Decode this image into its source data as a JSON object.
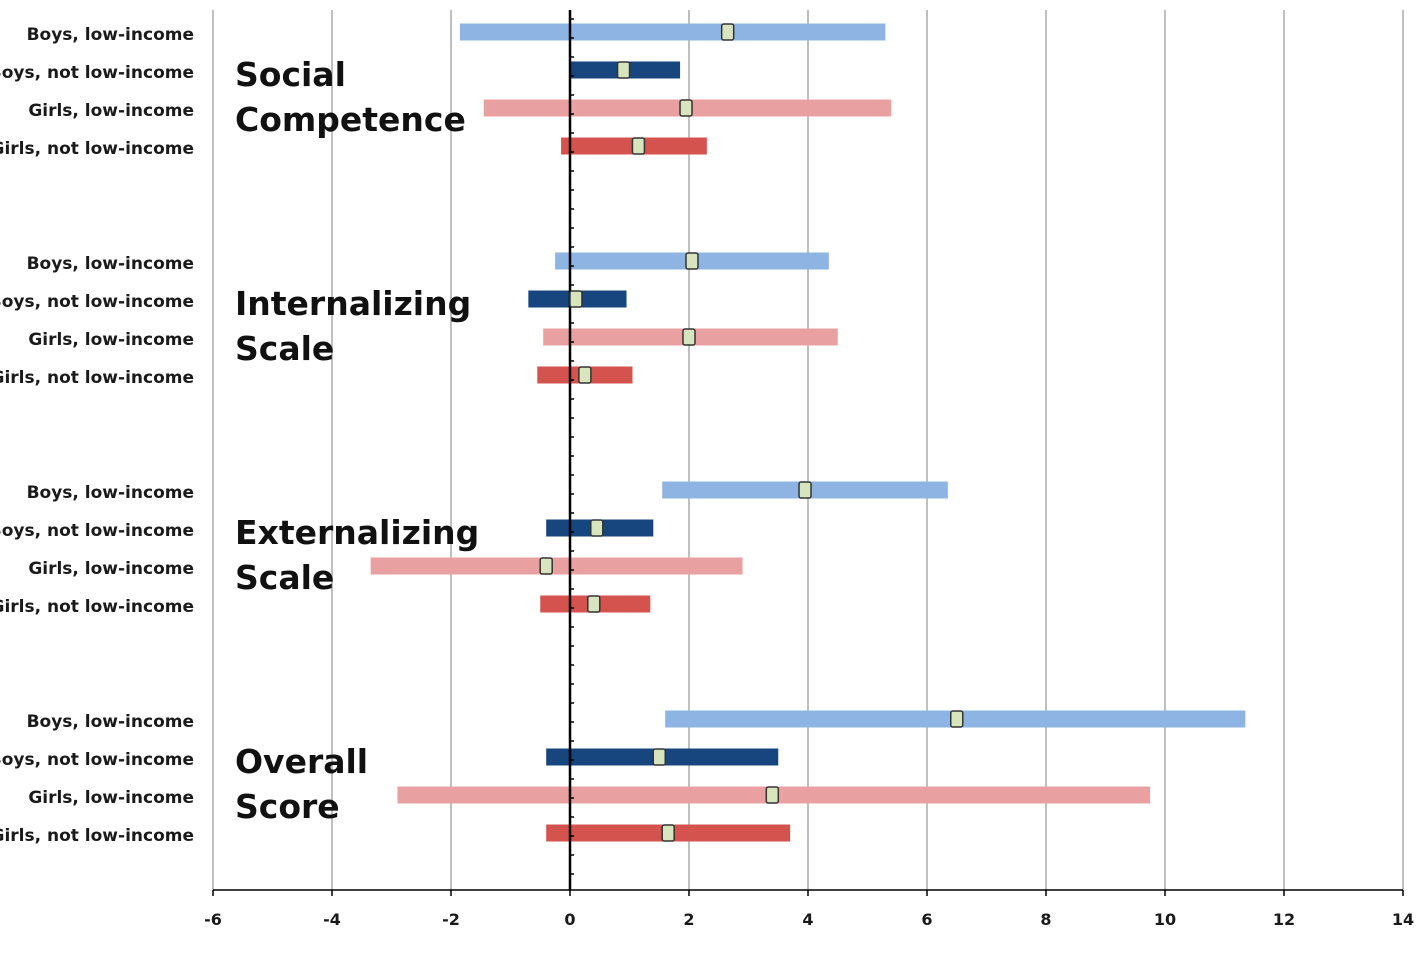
{
  "chart_data": {
    "type": "bar",
    "subtype": "horizontal-range-with-point",
    "title": "",
    "xlabel": "",
    "ylabel": "",
    "xlim": [
      -6,
      14
    ],
    "xticks": [
      -6,
      -4,
      -2,
      0,
      2,
      4,
      6,
      8,
      10,
      12,
      14
    ],
    "grid": true,
    "legend": "none",
    "colors": {
      "Boys, low-income": "#8db4e2",
      "Boys, not low-income": "#17467f",
      "Girls, low-income": "#e8a0a0",
      "Girls, not low-income": "#d4534f",
      "point_fill": "#d7e4bd",
      "point_stroke": "#333333",
      "gridline": "#bfbfbf",
      "axis": "#000000"
    },
    "groups": [
      {
        "title_lines": [
          "Social",
          "Competence"
        ],
        "rows": [
          {
            "label": "Boys, low-income",
            "low": -1.85,
            "high": 5.3,
            "point": 2.65
          },
          {
            "label": "Boys, not low-income",
            "low": 0.0,
            "high": 1.85,
            "point": 0.9
          },
          {
            "label": "Girls, low-income",
            "low": -1.45,
            "high": 5.4,
            "point": 1.95
          },
          {
            "label": "Girls, not low-income",
            "low": -0.15,
            "high": 2.3,
            "point": 1.15
          }
        ]
      },
      {
        "title_lines": [
          "Internalizing",
          "Scale"
        ],
        "rows": [
          {
            "label": "Boys, low-income",
            "low": -0.25,
            "high": 4.35,
            "point": 2.05
          },
          {
            "label": "Boys, not low-income",
            "low": -0.7,
            "high": 0.95,
            "point": 0.1
          },
          {
            "label": "Girls, low-income",
            "low": -0.45,
            "high": 4.5,
            "point": 2.0
          },
          {
            "label": "Girls, not low-income",
            "low": -0.55,
            "high": 1.05,
            "point": 0.25
          }
        ]
      },
      {
        "title_lines": [
          "Externalizing",
          "Scale"
        ],
        "rows": [
          {
            "label": "Boys, low-income",
            "low": 1.55,
            "high": 6.35,
            "point": 3.95
          },
          {
            "label": "Boys, not low-income",
            "low": -0.4,
            "high": 1.4,
            "point": 0.45
          },
          {
            "label": "Girls, low-income",
            "low": -3.35,
            "high": 2.9,
            "point": -0.4
          },
          {
            "label": "Girls, not low-income",
            "low": -0.5,
            "high": 1.35,
            "point": 0.4
          }
        ]
      },
      {
        "title_lines": [
          "Overall",
          "Score"
        ],
        "rows": [
          {
            "label": "Boys, low-income",
            "low": 1.6,
            "high": 11.35,
            "point": 6.5
          },
          {
            "label": "Boys, not low-income",
            "low": -0.4,
            "high": 3.5,
            "point": 1.5
          },
          {
            "label": "Girls, low-income",
            "low": -2.9,
            "high": 9.75,
            "point": 3.4
          },
          {
            "label": "Girls, not low-income",
            "low": -0.4,
            "high": 3.7,
            "point": 1.65
          }
        ]
      }
    ]
  }
}
